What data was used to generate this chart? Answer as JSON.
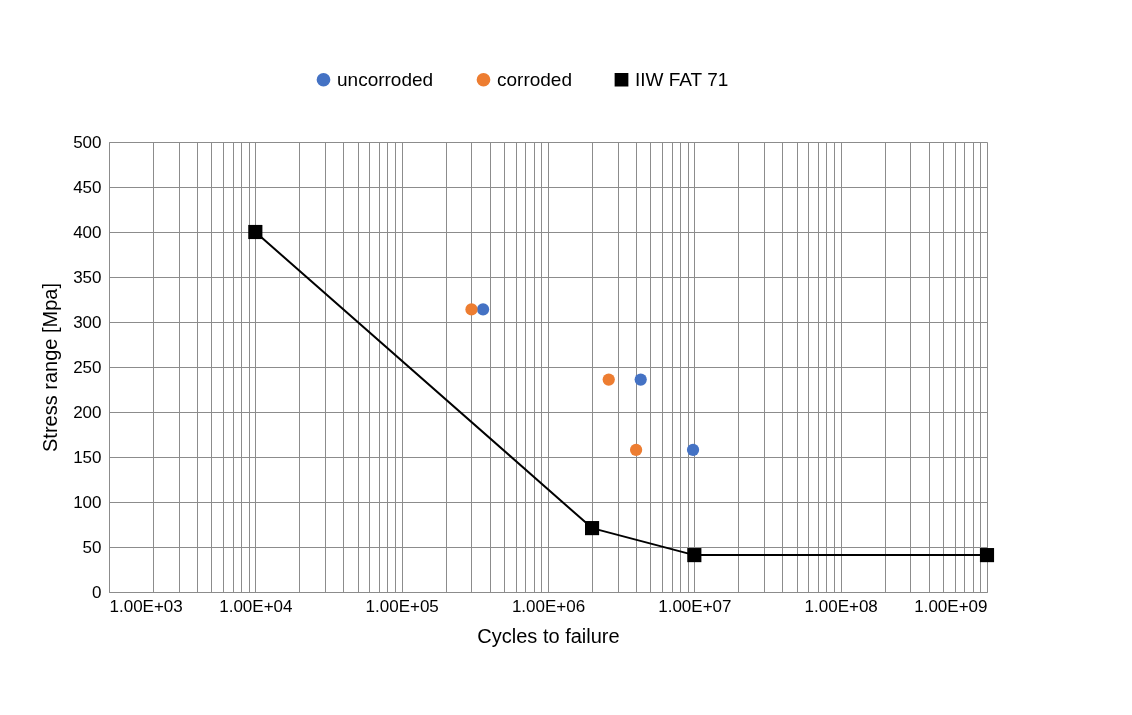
{
  "chart_data": {
    "type": "scatter",
    "xlabel": "Cycles to failure",
    "ylabel": "Stress range  [Mpa]",
    "log": "x",
    "grid": true,
    "legend": "top",
    "xlim": [
      1000,
      1000000000
    ],
    "ylim": [
      0,
      500
    ],
    "yticks": [
      0,
      50,
      100,
      150,
      200,
      250,
      300,
      350,
      400,
      450,
      500
    ],
    "xticks": [
      {
        "value": 1000,
        "label": "1.00E+03"
      },
      {
        "value": 2000,
        "label": null
      },
      {
        "value": 3000,
        "label": null
      },
      {
        "value": 4000,
        "label": null
      },
      {
        "value": 5000,
        "label": null
      },
      {
        "value": 6000,
        "label": null
      },
      {
        "value": 7000,
        "label": null
      },
      {
        "value": 8000,
        "label": null
      },
      {
        "value": 9000,
        "label": null
      },
      {
        "value": 10000,
        "label": "1.00E+04"
      },
      {
        "value": 20000,
        "label": null
      },
      {
        "value": 30000,
        "label": null
      },
      {
        "value": 40000,
        "label": null
      },
      {
        "value": 50000,
        "label": null
      },
      {
        "value": 60000,
        "label": null
      },
      {
        "value": 70000,
        "label": null
      },
      {
        "value": 80000,
        "label": null
      },
      {
        "value": 90000,
        "label": null
      },
      {
        "value": 100000,
        "label": "1.00E+05"
      },
      {
        "value": 200000,
        "label": null
      },
      {
        "value": 300000,
        "label": null
      },
      {
        "value": 400000,
        "label": null
      },
      {
        "value": 500000,
        "label": null
      },
      {
        "value": 600000,
        "label": null
      },
      {
        "value": 700000,
        "label": null
      },
      {
        "value": 800000,
        "label": null
      },
      {
        "value": 900000,
        "label": null
      },
      {
        "value": 1000000,
        "label": "1.00E+06"
      },
      {
        "value": 2000000,
        "label": null
      },
      {
        "value": 3000000,
        "label": null
      },
      {
        "value": 4000000,
        "label": null
      },
      {
        "value": 5000000,
        "label": null
      },
      {
        "value": 6000000,
        "label": null
      },
      {
        "value": 7000000,
        "label": null
      },
      {
        "value": 8000000,
        "label": null
      },
      {
        "value": 9000000,
        "label": null
      },
      {
        "value": 10000000,
        "label": "1.00E+07"
      },
      {
        "value": 20000000,
        "label": null
      },
      {
        "value": 30000000,
        "label": null
      },
      {
        "value": 40000000,
        "label": null
      },
      {
        "value": 50000000,
        "label": null
      },
      {
        "value": 60000000,
        "label": null
      },
      {
        "value": 70000000,
        "label": null
      },
      {
        "value": 80000000,
        "label": null
      },
      {
        "value": 90000000,
        "label": null
      },
      {
        "value": 100000000,
        "label": "1.00E+08"
      },
      {
        "value": 200000000,
        "label": null
      },
      {
        "value": 300000000,
        "label": null
      },
      {
        "value": 400000000,
        "label": null
      },
      {
        "value": 500000000,
        "label": null
      },
      {
        "value": 600000000,
        "label": null
      },
      {
        "value": 700000000,
        "label": null
      },
      {
        "value": 800000000,
        "label": null
      },
      {
        "value": 900000000,
        "label": null
      },
      {
        "value": 1000000000,
        "label": "1.00E+09"
      }
    ],
    "series": [
      {
        "name": "uncorroded",
        "color": "#4472c4",
        "marker": "circle",
        "x": [
          360000,
          4300000,
          9800000
        ],
        "values": [
          314,
          236,
          158
        ]
      },
      {
        "name": "corroded",
        "color": "#ed7d31",
        "marker": "circle",
        "x": [
          300000,
          2600000,
          4000000
        ],
        "values": [
          314,
          236,
          158
        ]
      },
      {
        "name": "IIW FAT 71",
        "type": "line",
        "color": "#000000",
        "marker": "square",
        "x": [
          10000,
          2000000,
          10000000,
          1000000000
        ],
        "values": [
          400,
          71,
          41,
          41
        ]
      }
    ]
  }
}
